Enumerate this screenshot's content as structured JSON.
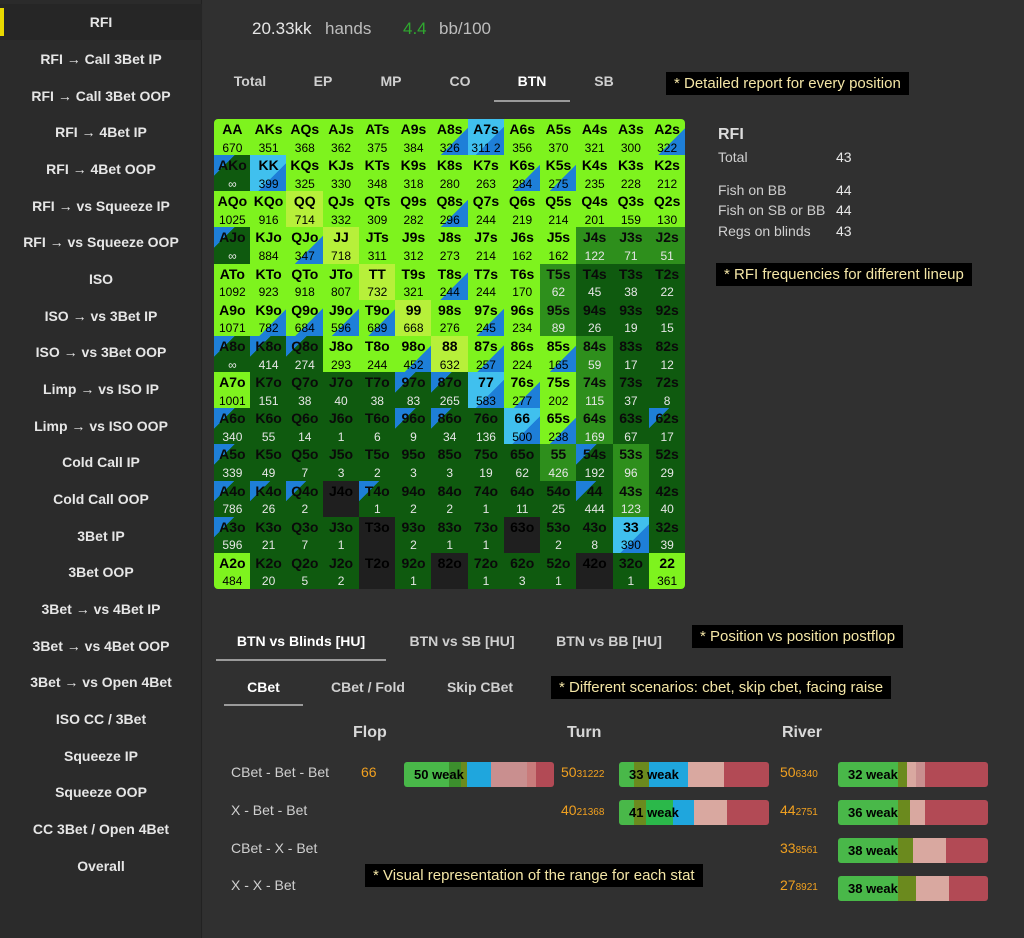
{
  "sidebar": {
    "items": [
      {
        "label": "RFI"
      },
      {
        "label": "RFI → Call 3Bet IP"
      },
      {
        "label": "RFI → Call 3Bet OOP"
      },
      {
        "label": "RFI → 4Bet IP"
      },
      {
        "label": "RFI → 4Bet OOP"
      },
      {
        "label": "RFI → vs Squeeze IP"
      },
      {
        "label": "RFI → vs Squeeze OOP"
      },
      {
        "label": "ISO"
      },
      {
        "label": "ISO → vs 3Bet IP"
      },
      {
        "label": "ISO → vs 3Bet OOP"
      },
      {
        "label": "Limp → vs ISO IP"
      },
      {
        "label": "Limp → vs ISO OOP"
      },
      {
        "label": "Cold Call IP"
      },
      {
        "label": "Cold Call OOP"
      },
      {
        "label": "3Bet IP"
      },
      {
        "label": "3Bet OOP"
      },
      {
        "label": "3Bet → vs 4Bet IP"
      },
      {
        "label": "3Bet → vs 4Bet OOP"
      },
      {
        "label": "3Bet → vs Open 4Bet"
      },
      {
        "label": "ISO CC / 3Bet"
      },
      {
        "label": "Squeeze IP"
      },
      {
        "label": "Squeeze OOP"
      },
      {
        "label": "CC 3Bet / Open 4Bet"
      },
      {
        "label": "Overall"
      }
    ]
  },
  "header": {
    "hands_value": "20.33kk",
    "hands_label": "hands",
    "winrate_value": "4.4",
    "winrate_label": "bb/100"
  },
  "position_tabs": [
    "Total",
    "EP",
    "MP",
    "CO",
    "BTN",
    "SB"
  ],
  "notes": {
    "positions": "* Detailed report for every position",
    "lineup": "* RFI frequencies for different lineup",
    "postflop": "* Position vs position postflop",
    "scenarios": "* Different scenarios: cbet, skip cbet, facing raise",
    "visual": "* Visual representation of the range for each stat"
  },
  "rfi_stats": {
    "title": "RFI",
    "rows": [
      {
        "label": "Total",
        "value": "43"
      },
      {
        "label": "Fish on BB",
        "value": "44"
      },
      {
        "label": "Fish on SB or BB",
        "value": "44"
      },
      {
        "label": "Regs on blinds",
        "value": "43"
      }
    ]
  },
  "matchup_tabs": [
    "BTN vs Blinds [HU]",
    "BTN vs SB [HU]",
    "BTN vs BB [HU]"
  ],
  "scenario_tabs": [
    "CBet",
    "CBet / Fold",
    "Skip CBet"
  ],
  "streets": [
    "Flop",
    "Turn",
    "River"
  ],
  "postflop_rows": [
    "CBet - Bet - Bet",
    "X - Bet - Bet",
    "CBet - X - Bet",
    "X - X - Bet"
  ],
  "postflop_bars": [
    {
      "key": "f0",
      "num": "66",
      "sub": "",
      "label": "50 weak"
    },
    {
      "key": "t0",
      "num": "50",
      "sub": "31222",
      "label": "33 weak"
    },
    {
      "key": "t1",
      "num": "40",
      "sub": "21368",
      "label": "41 weak"
    },
    {
      "key": "r0",
      "num": "50",
      "sub": "6340",
      "label": "32 weak"
    },
    {
      "key": "r1",
      "num": "44",
      "sub": "2751",
      "label": "36 weak"
    },
    {
      "key": "r2",
      "num": "33",
      "sub": "8561",
      "label": "38 weak"
    },
    {
      "key": "r3",
      "num": "27",
      "sub": "8921",
      "label": "38 weak"
    }
  ],
  "colors": {
    "accent": "#e8d800",
    "bright_green": "#7ef31e",
    "mid_green": "#2e8f1c",
    "dark_green": "#0f5a0f",
    "blue": "#1e7fd8",
    "orange": "#f0a020"
  },
  "matrix": [
    [
      [
        "AA",
        "670",
        "g"
      ],
      [
        "AKs",
        "351",
        "g"
      ],
      [
        "AQs",
        "368",
        "g"
      ],
      [
        "AJs",
        "362",
        "g"
      ],
      [
        "ATs",
        "375",
        "g"
      ],
      [
        "A9s",
        "384",
        "g"
      ],
      [
        "A8s",
        "326",
        "gb"
      ],
      [
        "A7s",
        "311 2",
        "b"
      ],
      [
        "A6s",
        "356",
        "g"
      ],
      [
        "A5s",
        "370",
        "g"
      ],
      [
        "A4s",
        "321",
        "g"
      ],
      [
        "A3s",
        "300",
        "g"
      ],
      [
        "A2s",
        "322",
        "gb"
      ]
    ],
    [
      [
        "AKo",
        "∞",
        "bd"
      ],
      [
        "KK",
        "399",
        "b"
      ],
      [
        "KQs",
        "325",
        "g"
      ],
      [
        "KJs",
        "330",
        "g"
      ],
      [
        "KTs",
        "348",
        "g"
      ],
      [
        "K9s",
        "318",
        "g"
      ],
      [
        "K8s",
        "280",
        "g"
      ],
      [
        "K7s",
        "263",
        "g"
      ],
      [
        "K6s",
        "284",
        "gb"
      ],
      [
        "K5s",
        "275",
        "gb"
      ],
      [
        "K4s",
        "235",
        "g"
      ],
      [
        "K3s",
        "228",
        "g"
      ],
      [
        "K2s",
        "212",
        "g"
      ]
    ],
    [
      [
        "AQo",
        "1025",
        "g"
      ],
      [
        "KQo",
        "916",
        "g"
      ],
      [
        "QQ",
        "714",
        "y"
      ],
      [
        "QJs",
        "332",
        "g"
      ],
      [
        "QTs",
        "309",
        "g"
      ],
      [
        "Q9s",
        "282",
        "g"
      ],
      [
        "Q8s",
        "296",
        "gb"
      ],
      [
        "Q7s",
        "244",
        "g"
      ],
      [
        "Q6s",
        "219",
        "g"
      ],
      [
        "Q5s",
        "214",
        "g"
      ],
      [
        "Q4s",
        "201",
        "g"
      ],
      [
        "Q3s",
        "159",
        "g"
      ],
      [
        "Q2s",
        "130",
        "g"
      ]
    ],
    [
      [
        "AJo",
        "∞",
        "bd"
      ],
      [
        "KJo",
        "884",
        "g"
      ],
      [
        "QJo",
        "347",
        "gb"
      ],
      [
        "JJ",
        "718",
        "y"
      ],
      [
        "JTs",
        "311",
        "g"
      ],
      [
        "J9s",
        "312",
        "g"
      ],
      [
        "J8s",
        "273",
        "g"
      ],
      [
        "J7s",
        "214",
        "g"
      ],
      [
        "J6s",
        "162",
        "g"
      ],
      [
        "J5s",
        "162",
        "g"
      ],
      [
        "J4s",
        "122",
        "m"
      ],
      [
        "J3s",
        "71",
        "m"
      ],
      [
        "J2s",
        "51",
        "m"
      ]
    ],
    [
      [
        "ATo",
        "1092",
        "g"
      ],
      [
        "KTo",
        "923",
        "g"
      ],
      [
        "QTo",
        "918",
        "g"
      ],
      [
        "JTo",
        "807",
        "g"
      ],
      [
        "TT",
        "732",
        "y"
      ],
      [
        "T9s",
        "321",
        "g"
      ],
      [
        "T8s",
        "244",
        "gb"
      ],
      [
        "T7s",
        "244",
        "g"
      ],
      [
        "T6s",
        "170",
        "g"
      ],
      [
        "T5s",
        "62",
        "m"
      ],
      [
        "T4s",
        "45",
        "d"
      ],
      [
        "T3s",
        "38",
        "d"
      ],
      [
        "T2s",
        "22",
        "d"
      ]
    ],
    [
      [
        "A9o",
        "1071",
        "g"
      ],
      [
        "K9o",
        "782",
        "gb"
      ],
      [
        "Q9o",
        "684",
        "gb"
      ],
      [
        "J9o",
        "596",
        "gb"
      ],
      [
        "T9o",
        "689",
        "gb"
      ],
      [
        "99",
        "668",
        "y"
      ],
      [
        "98s",
        "276",
        "g"
      ],
      [
        "97s",
        "245",
        "gb"
      ],
      [
        "96s",
        "234",
        "g"
      ],
      [
        "95s",
        "89",
        "m"
      ],
      [
        "94s",
        "26",
        "d"
      ],
      [
        "93s",
        "19",
        "d"
      ],
      [
        "92s",
        "15",
        "d"
      ]
    ],
    [
      [
        "A8o",
        "∞",
        "bd"
      ],
      [
        "K8o",
        "414",
        "bd"
      ],
      [
        "Q8o",
        "274",
        "bd"
      ],
      [
        "J8o",
        "293",
        "g"
      ],
      [
        "T8o",
        "244",
        "g"
      ],
      [
        "98o",
        "452",
        "gb"
      ],
      [
        "88",
        "632",
        "y"
      ],
      [
        "87s",
        "257",
        "gb"
      ],
      [
        "86s",
        "224",
        "g"
      ],
      [
        "85s",
        "165",
        "gb"
      ],
      [
        "84s",
        "59",
        "m"
      ],
      [
        "83s",
        "17",
        "d"
      ],
      [
        "82s",
        "12",
        "d"
      ]
    ],
    [
      [
        "A7o",
        "1001",
        "g"
      ],
      [
        "K7o",
        "151",
        "d"
      ],
      [
        "Q7o",
        "38",
        "d"
      ],
      [
        "J7o",
        "40",
        "d"
      ],
      [
        "T7o",
        "38",
        "d"
      ],
      [
        "97o",
        "83",
        "bd"
      ],
      [
        "87o",
        "265",
        "bd"
      ],
      [
        "77",
        "583",
        "b"
      ],
      [
        "76s",
        "277",
        "gb"
      ],
      [
        "75s",
        "202",
        "g"
      ],
      [
        "74s",
        "115",
        "m"
      ],
      [
        "73s",
        "37",
        "d"
      ],
      [
        "72s",
        "8",
        "d"
      ]
    ],
    [
      [
        "A6o",
        "340",
        "bd"
      ],
      [
        "K6o",
        "55",
        "d"
      ],
      [
        "Q6o",
        "14",
        "d"
      ],
      [
        "J6o",
        "1",
        "d"
      ],
      [
        "T6o",
        "6",
        "d"
      ],
      [
        "96o",
        "9",
        "bd"
      ],
      [
        "86o",
        "34",
        "bd"
      ],
      [
        "76o",
        "136",
        "d"
      ],
      [
        "66",
        "500",
        "b"
      ],
      [
        "65s",
        "238",
        "gb"
      ],
      [
        "64s",
        "169",
        "m"
      ],
      [
        "63s",
        "67",
        "d"
      ],
      [
        "62s",
        "17",
        "bd"
      ]
    ],
    [
      [
        "A5o",
        "339",
        "bd"
      ],
      [
        "K5o",
        "49",
        "d"
      ],
      [
        "Q5o",
        "7",
        "d"
      ],
      [
        "J5o",
        "3",
        "d"
      ],
      [
        "T5o",
        "2",
        "d"
      ],
      [
        "95o",
        "3",
        "d"
      ],
      [
        "85o",
        "3",
        "d"
      ],
      [
        "75o",
        "19",
        "d"
      ],
      [
        "65o",
        "62",
        "d"
      ],
      [
        "55",
        "426",
        "m"
      ],
      [
        "54s",
        "192",
        "bd"
      ],
      [
        "53s",
        "96",
        "m"
      ],
      [
        "52s",
        "29",
        "d"
      ]
    ],
    [
      [
        "A4o",
        "786",
        "bd"
      ],
      [
        "K4o",
        "26",
        "bd"
      ],
      [
        "Q4o",
        "2",
        "bd"
      ],
      [
        "J4o",
        "",
        "v"
      ],
      [
        "T4o",
        "1",
        "bd"
      ],
      [
        "94o",
        "2",
        "d"
      ],
      [
        "84o",
        "2",
        "d"
      ],
      [
        "74o",
        "1",
        "d"
      ],
      [
        "64o",
        "11",
        "d"
      ],
      [
        "54o",
        "25",
        "d"
      ],
      [
        "44",
        "444",
        "bd"
      ],
      [
        "43s",
        "123",
        "m"
      ],
      [
        "42s",
        "40",
        "d"
      ]
    ],
    [
      [
        "A3o",
        "596",
        "bd"
      ],
      [
        "K3o",
        "21",
        "d"
      ],
      [
        "Q3o",
        "7",
        "d"
      ],
      [
        "J3o",
        "1",
        "d"
      ],
      [
        "T3o",
        "",
        "v"
      ],
      [
        "93o",
        "2",
        "d"
      ],
      [
        "83o",
        "1",
        "d"
      ],
      [
        "73o",
        "1",
        "d"
      ],
      [
        "63o",
        "",
        "v"
      ],
      [
        "53o",
        "2",
        "d"
      ],
      [
        "43o",
        "8",
        "d"
      ],
      [
        "33",
        "390",
        "b"
      ],
      [
        "32s",
        "39",
        "d"
      ]
    ],
    [
      [
        "A2o",
        "484",
        "g"
      ],
      [
        "K2o",
        "20",
        "d"
      ],
      [
        "Q2o",
        "5",
        "d"
      ],
      [
        "J2o",
        "2",
        "d"
      ],
      [
        "T2o",
        "",
        "v"
      ],
      [
        "92o",
        "1",
        "d"
      ],
      [
        "82o",
        "",
        "v"
      ],
      [
        "72o",
        "1",
        "d"
      ],
      [
        "62o",
        "3",
        "d"
      ],
      [
        "52o",
        "1",
        "d"
      ],
      [
        "42o",
        "",
        "v"
      ],
      [
        "32o",
        "1",
        "d"
      ],
      [
        "22",
        "361",
        "g"
      ]
    ]
  ]
}
